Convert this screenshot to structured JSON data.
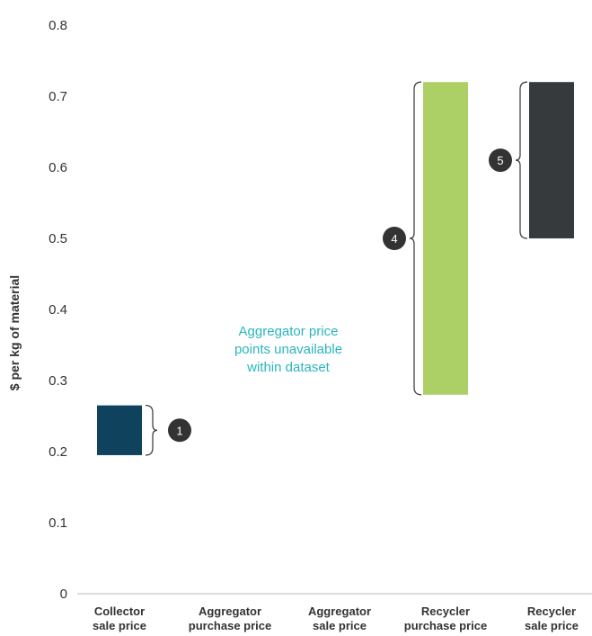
{
  "chart_data": {
    "type": "bar",
    "ylabel": "$ per kg of material",
    "ylim": [
      0,
      0.8
    ],
    "yticks": [
      "0",
      "0.1",
      "0.2",
      "0.3",
      "0.4",
      "0.5",
      "0.6",
      "0.7",
      "0.8"
    ],
    "ytick_values": [
      0,
      0.1,
      0.2,
      0.3,
      0.4,
      0.5,
      0.6,
      0.7,
      0.8
    ],
    "categories": [
      [
        "Collector",
        "sale price"
      ],
      [
        "Aggregator",
        "purchase price"
      ],
      [
        "Aggregator",
        "sale price"
      ],
      [
        "Recycler",
        "purchase price"
      ],
      [
        "Recycler",
        "sale price"
      ]
    ],
    "ranges": [
      {
        "low": 0.195,
        "high": 0.265,
        "color": "#0f425c",
        "badge": "1"
      },
      null,
      null,
      {
        "low": 0.28,
        "high": 0.72,
        "color": "#acd066",
        "badge": "4"
      },
      {
        "low": 0.5,
        "high": 0.72,
        "color": "#363a3d",
        "badge": "5"
      }
    ],
    "annotation": [
      "Aggregator price",
      "points unavailable",
      "within dataset"
    ],
    "colors": {
      "badge": "#333333",
      "annotation": "#2bb5be",
      "brace": "#444444"
    }
  }
}
